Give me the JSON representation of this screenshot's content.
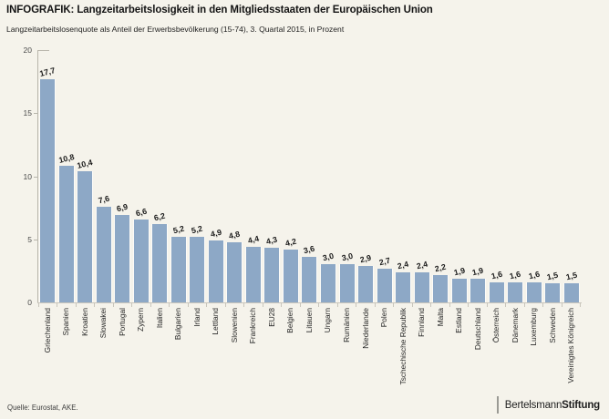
{
  "header": {
    "title": "INFOGRAFIK: Langzeitarbeitslosigkeit in den Mitgliedsstaaten der Europäischen Union",
    "subtitle": "Langzeitarbeitslosenquote als Anteil der Erwerbsbevölkerung (15-74), 3. Quartal 2015, in Prozent"
  },
  "footer": {
    "source": "Quelle: Eurostat, AKE.",
    "logo_part1": "Bertelsmann",
    "logo_part2": "Stiftung"
  },
  "colors": {
    "background": "#f5f3eb",
    "bar": "#8da8c6",
    "axis": "#b8b5ab",
    "value_label": "#1a1a1a"
  },
  "chart_data": {
    "type": "bar",
    "title": "INFOGRAFIK: Langzeitarbeitslosigkeit in den Mitgliedsstaaten der Europäischen Union",
    "subtitle": "Langzeitarbeitslosenquote als Anteil der Erwerbsbevölkerung (15-74), 3. Quartal 2015, in Prozent",
    "xlabel": "",
    "ylabel": "Prozent",
    "ylim": [
      0,
      20
    ],
    "y_ticks": [
      0,
      5,
      10,
      15,
      20
    ],
    "grid": false,
    "legend": false,
    "categories": [
      "Griechenland",
      "Spanien",
      "Kroatien",
      "Slowakei",
      "Portugal",
      "Zypern",
      "Italien",
      "Bulgarien",
      "Irland",
      "Lettland",
      "Slowenien",
      "Frankreich",
      "EU28",
      "Belgien",
      "Litauen",
      "Ungarn",
      "Rumänien",
      "Niederlande",
      "Polen",
      "Tschechische Republik",
      "Finnland",
      "Malta",
      "Estland",
      "Deutschland",
      "Österreich",
      "Dänemark",
      "Luxemburg",
      "Schweden",
      "Vereinigtes Königreich"
    ],
    "values": [
      17.7,
      10.8,
      10.4,
      7.6,
      6.9,
      6.6,
      6.2,
      5.2,
      5.2,
      4.9,
      4.8,
      4.4,
      4.3,
      4.2,
      3.6,
      3.0,
      3.0,
      2.9,
      2.7,
      2.4,
      2.4,
      2.2,
      1.9,
      1.9,
      1.6,
      1.6,
      1.6,
      1.5,
      1.5
    ],
    "value_labels": [
      "17,7",
      "10,8",
      "10,4",
      "7,6",
      "6,9",
      "6,6",
      "6,2",
      "5,2",
      "5,2",
      "4,9",
      "4,8",
      "4,4",
      "4,3",
      "4,2",
      "3,6",
      "3,0",
      "3,0",
      "2,9",
      "2,7",
      "2,4",
      "2,4",
      "2,2",
      "1,9",
      "1,9",
      "1,6",
      "1,6",
      "1,6",
      "1,5",
      "1,5"
    ]
  }
}
